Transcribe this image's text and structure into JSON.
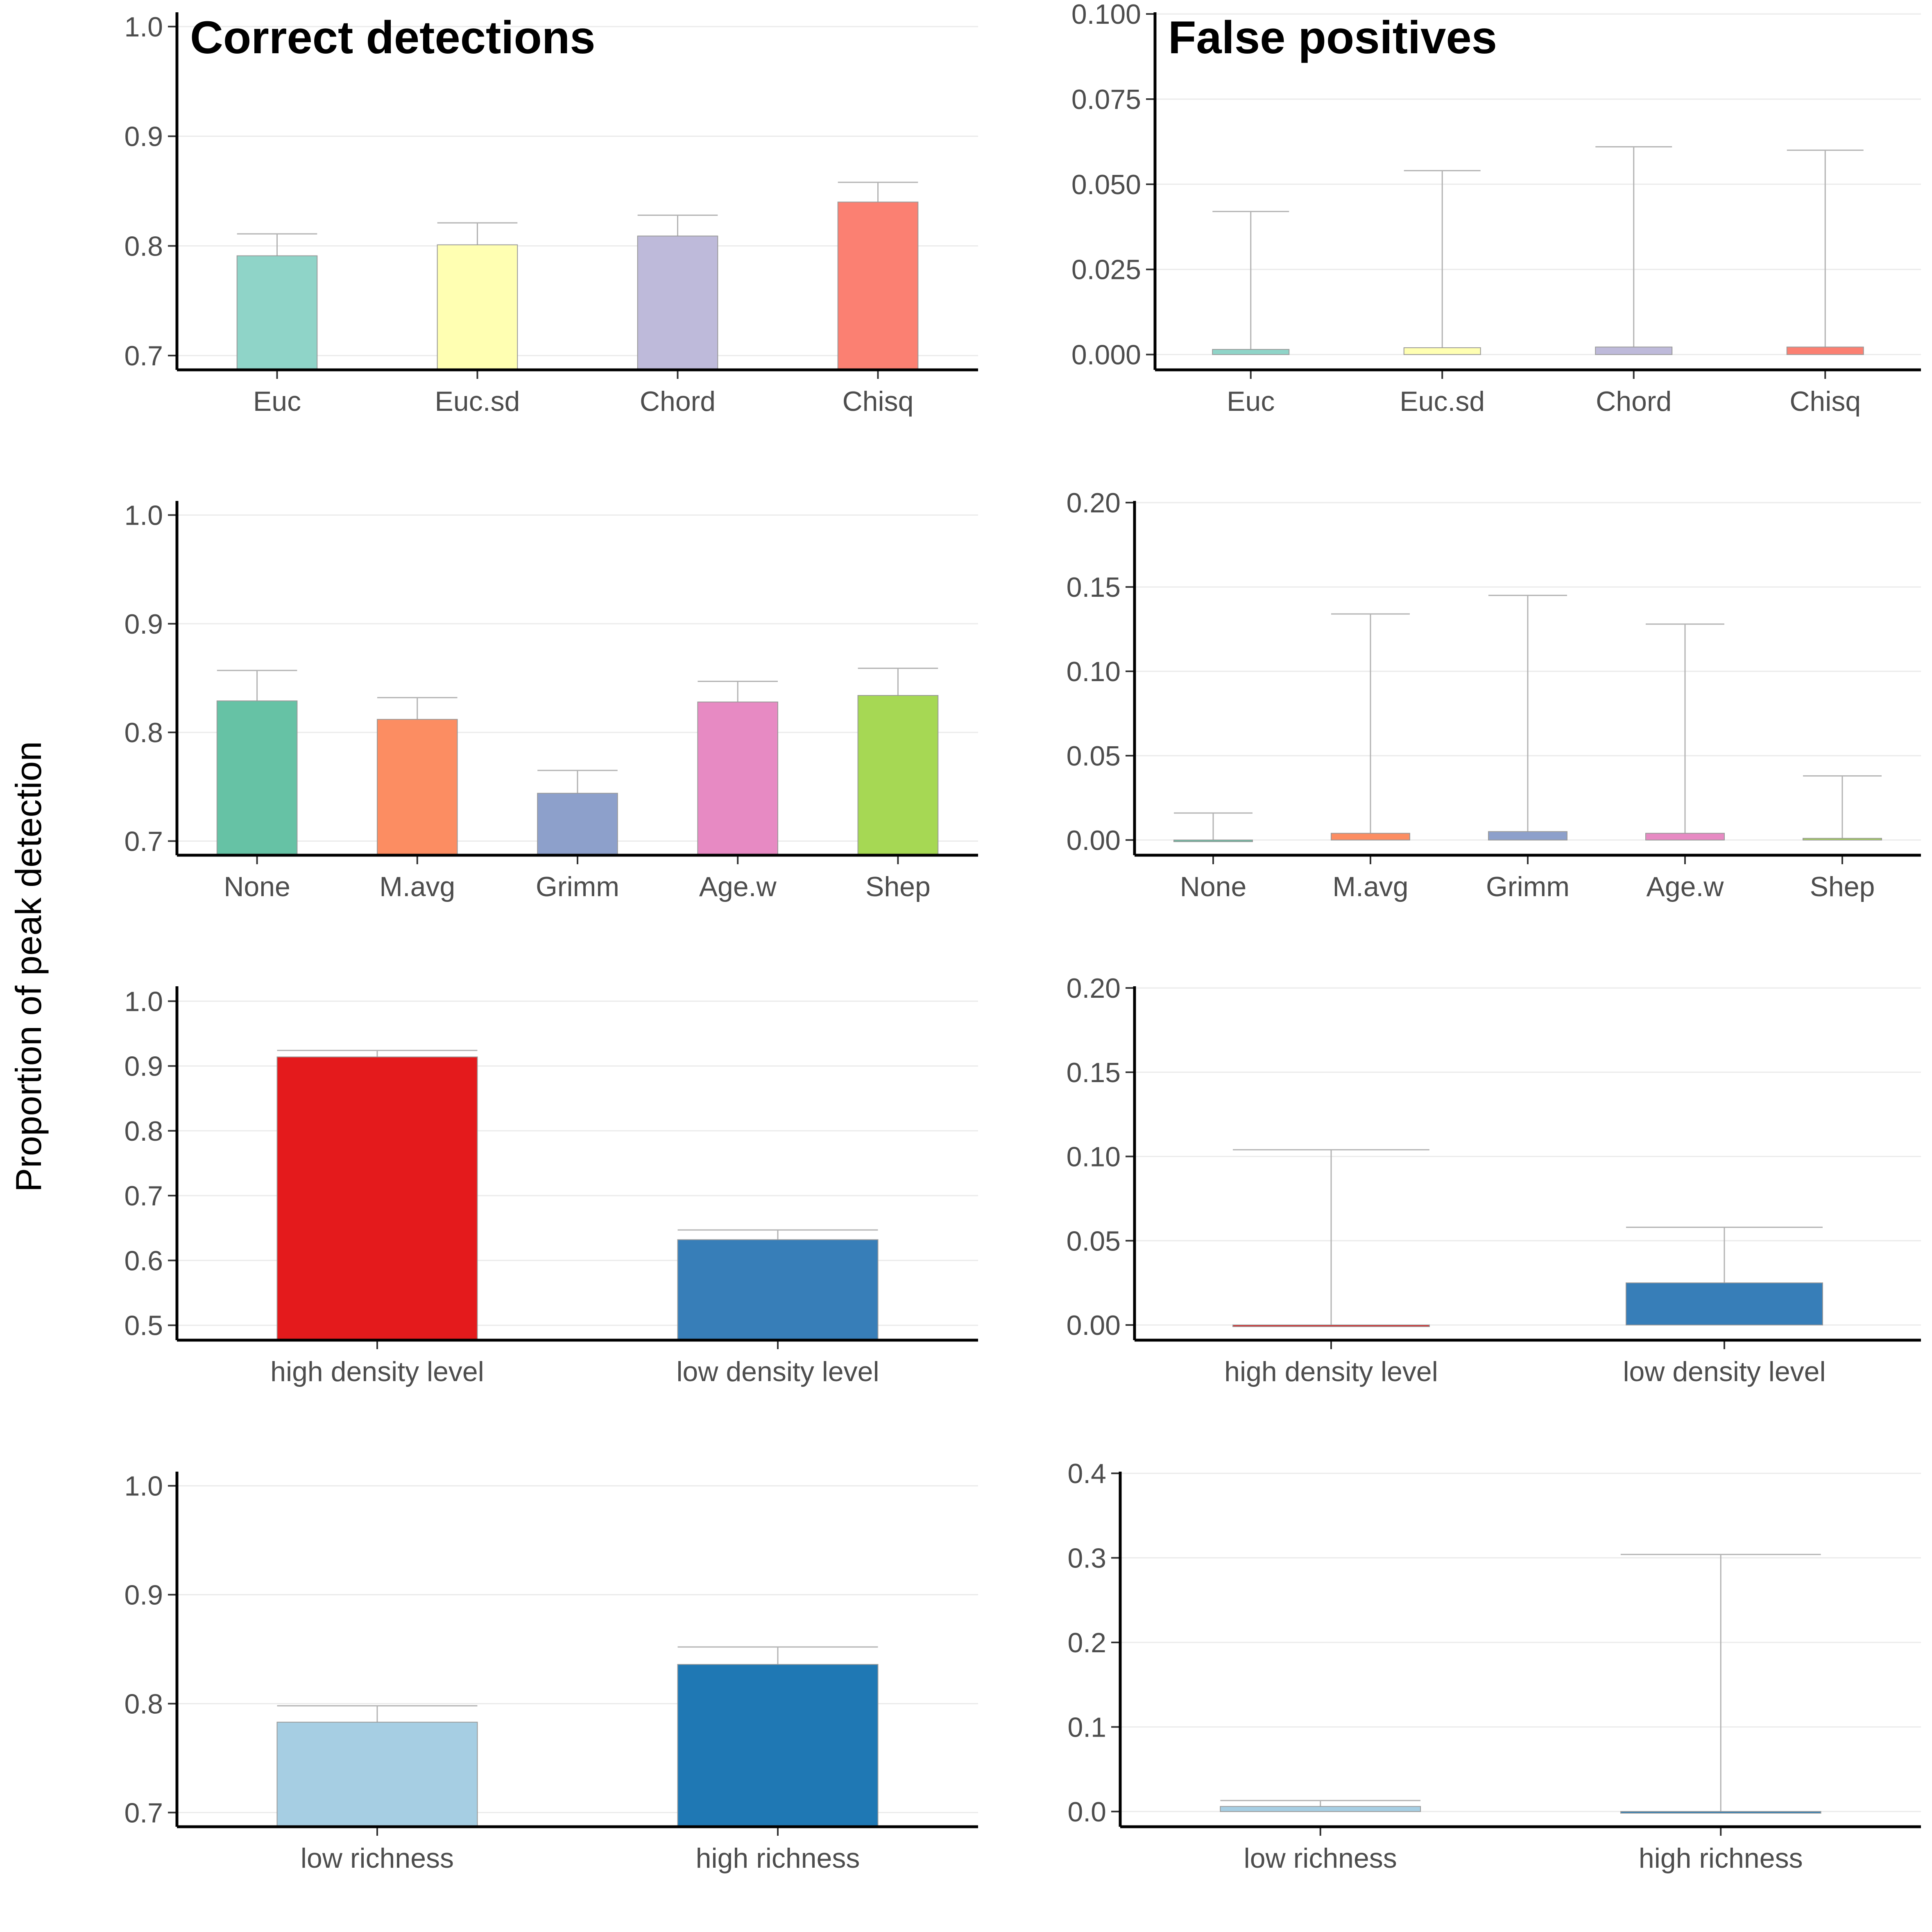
{
  "figure": {
    "ylabel": "Proportion of peak detection",
    "col_titles": [
      "Correct detections",
      "False positives"
    ]
  },
  "chart_data": [
    {
      "id": "correct-dissimilarity",
      "type": "bar",
      "title": "Correct detections",
      "categories": [
        "Euc",
        "Euc.sd",
        "Chord",
        "Chisq"
      ],
      "values": [
        0.791,
        0.801,
        0.809,
        0.84
      ],
      "upper": [
        0.811,
        0.821,
        0.828,
        0.858
      ],
      "colors": [
        "#8fd4c8",
        "#ffffb2",
        "#bebada",
        "#fb8072"
      ],
      "ylim": [
        0.687,
        1.013
      ],
      "yticks": [
        0.7,
        0.8,
        0.9,
        1.0
      ],
      "ytick_labels": [
        "0.7",
        "0.8",
        "0.9",
        "1.0"
      ],
      "grid": true
    },
    {
      "id": "false-dissimilarity",
      "type": "bar",
      "title": "False positives",
      "categories": [
        "Euc",
        "Euc.sd",
        "Chord",
        "Chisq"
      ],
      "values": [
        0.0015,
        0.002,
        0.0022,
        0.0022
      ],
      "upper": [
        0.042,
        0.054,
        0.061,
        0.06
      ],
      "colors": [
        "#8fd4c8",
        "#ffffb2",
        "#bebada",
        "#fb8072"
      ],
      "ylim": [
        -0.0045,
        0.1005
      ],
      "yticks": [
        0.0,
        0.025,
        0.05,
        0.075,
        0.1
      ],
      "ytick_labels": [
        "0.000",
        "0.025",
        "0.050",
        "0.075",
        "0.100"
      ],
      "grid": true
    },
    {
      "id": "correct-smoothing",
      "type": "bar",
      "title": "",
      "categories": [
        "None",
        "M.avg",
        "Grimm",
        "Age.w",
        "Shep"
      ],
      "values": [
        0.829,
        0.812,
        0.744,
        0.828,
        0.834
      ],
      "upper": [
        0.857,
        0.832,
        0.765,
        0.847,
        0.859
      ],
      "colors": [
        "#66c2a5",
        "#fc8d62",
        "#8da0cb",
        "#e78ac3",
        "#a6d854"
      ],
      "ylim": [
        0.687,
        1.013
      ],
      "yticks": [
        0.7,
        0.8,
        0.9,
        1.0
      ],
      "ytick_labels": [
        "0.7",
        "0.8",
        "0.9",
        "1.0"
      ],
      "grid": true
    },
    {
      "id": "false-smoothing",
      "type": "bar",
      "title": "",
      "categories": [
        "None",
        "M.avg",
        "Grimm",
        "Age.w",
        "Shep"
      ],
      "values": [
        0.0,
        0.004,
        0.005,
        0.004,
        0.001
      ],
      "upper": [
        0.016,
        0.134,
        0.145,
        0.128,
        0.038
      ],
      "colors": [
        "#66c2a5",
        "#fc8d62",
        "#8da0cb",
        "#e78ac3",
        "#a6d854"
      ],
      "ylim": [
        -0.009,
        0.201
      ],
      "yticks": [
        0.0,
        0.05,
        0.1,
        0.15,
        0.2
      ],
      "ytick_labels": [
        "0.00",
        "0.05",
        "0.10",
        "0.15",
        "0.20"
      ],
      "grid": true
    },
    {
      "id": "correct-density",
      "type": "bar",
      "title": "",
      "categories": [
        "high density level",
        "low density level"
      ],
      "values": [
        0.914,
        0.632
      ],
      "upper": [
        0.924,
        0.647
      ],
      "colors": [
        "#e41a1c",
        "#377eb8"
      ],
      "ylim": [
        0.477,
        1.023
      ],
      "yticks": [
        0.5,
        0.6,
        0.7,
        0.8,
        0.9,
        1.0
      ],
      "ytick_labels": [
        "0.5",
        "0.6",
        "0.7",
        "0.8",
        "0.9",
        "1.0"
      ],
      "grid": true
    },
    {
      "id": "false-density",
      "type": "bar",
      "title": "",
      "categories": [
        "high density level",
        "low density level"
      ],
      "values": [
        0.0,
        0.025
      ],
      "upper": [
        0.104,
        0.058
      ],
      "colors": [
        "#e41a1c",
        "#377eb8"
      ],
      "ylim": [
        -0.009,
        0.201
      ],
      "yticks": [
        0.0,
        0.05,
        0.1,
        0.15,
        0.2
      ],
      "ytick_labels": [
        "0.00",
        "0.05",
        "0.10",
        "0.15",
        "0.20"
      ],
      "grid": true
    },
    {
      "id": "correct-richness",
      "type": "bar",
      "title": "",
      "categories": [
        "low richness",
        "high richness"
      ],
      "values": [
        0.783,
        0.836
      ],
      "upper": [
        0.798,
        0.852
      ],
      "colors": [
        "#a6cee3",
        "#1f78b4"
      ],
      "ylim": [
        0.687,
        1.013
      ],
      "yticks": [
        0.7,
        0.8,
        0.9,
        1.0
      ],
      "ytick_labels": [
        "0.7",
        "0.8",
        "0.9",
        "1.0"
      ],
      "grid": true
    },
    {
      "id": "false-richness",
      "type": "bar",
      "title": "",
      "categories": [
        "low richness",
        "high richness"
      ],
      "values": [
        0.006,
        0.0
      ],
      "upper": [
        0.013,
        0.304
      ],
      "colors": [
        "#a6cee3",
        "#1f78b4"
      ],
      "ylim": [
        -0.018,
        0.402
      ],
      "yticks": [
        0.0,
        0.1,
        0.2,
        0.3,
        0.4
      ],
      "ytick_labels": [
        "0.0",
        "0.1",
        "0.2",
        "0.3",
        "0.4"
      ],
      "grid": true
    }
  ]
}
